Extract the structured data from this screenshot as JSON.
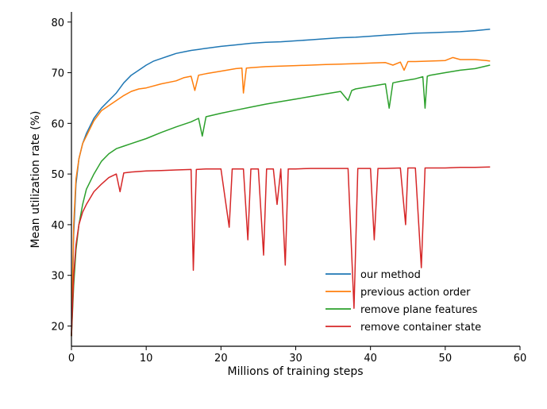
{
  "chart_data": {
    "type": "line",
    "title": "",
    "xlabel": "Millions of training steps",
    "ylabel": "Mean utilization rate (%)",
    "xlim": [
      0,
      60
    ],
    "ylim": [
      16,
      82
    ],
    "xticks": [
      0,
      10,
      20,
      30,
      40,
      50,
      60
    ],
    "yticks": [
      20,
      30,
      40,
      50,
      60,
      70,
      80
    ],
    "grid": false,
    "legend_position": "lower-right",
    "series": [
      {
        "name": "our method",
        "color": "#1f77b4",
        "x": [
          0,
          0.3,
          0.6,
          1,
          1.5,
          2,
          3,
          4,
          5,
          6,
          7,
          8,
          9,
          10,
          11,
          12,
          13,
          14,
          15,
          16,
          17,
          18,
          20,
          22,
          24,
          26,
          28,
          30,
          32,
          34,
          36,
          38,
          40,
          42,
          44,
          46,
          48,
          50,
          52,
          54,
          56
        ],
        "y": [
          18,
          38,
          48,
          53,
          56,
          58,
          61,
          63,
          64.5,
          66,
          68,
          69.5,
          70.5,
          71.5,
          72.3,
          72.8,
          73.3,
          73.8,
          74.1,
          74.4,
          74.6,
          74.8,
          75.2,
          75.5,
          75.8,
          76,
          76.1,
          76.3,
          76.5,
          76.7,
          76.9,
          77,
          77.2,
          77.4,
          77.6,
          77.8,
          77.9,
          78,
          78.1,
          78.3,
          78.6
        ]
      },
      {
        "name": "previous action order",
        "color": "#ff7f0e",
        "x": [
          0,
          0.3,
          0.6,
          1,
          1.5,
          2,
          3,
          4,
          5,
          6,
          7,
          8,
          9,
          10,
          12,
          14,
          15,
          16,
          16.5,
          17,
          18,
          20,
          22,
          22.8,
          23,
          23.4,
          24,
          26,
          28,
          30,
          32,
          34,
          36,
          38,
          40,
          42,
          43,
          44,
          44.5,
          45,
          46,
          48,
          50,
          51,
          52,
          54,
          55.5,
          56
        ],
        "y": [
          18,
          40,
          49,
          53,
          56,
          57.5,
          60.5,
          62.5,
          63.5,
          64.5,
          65.5,
          66.3,
          66.8,
          67,
          67.8,
          68.4,
          69,
          69.3,
          66.5,
          69.5,
          69.8,
          70.3,
          70.8,
          70.9,
          66,
          70.9,
          71,
          71.2,
          71.3,
          71.4,
          71.5,
          71.6,
          71.7,
          71.8,
          71.9,
          72,
          71.5,
          72.1,
          70.5,
          72.2,
          72.2,
          72.3,
          72.4,
          73,
          72.6,
          72.6,
          72.4,
          72.3
        ]
      },
      {
        "name": "remove plane features",
        "color": "#2ca02c",
        "x": [
          0,
          0.3,
          0.6,
          1,
          1.5,
          2,
          3,
          4,
          5,
          6,
          7,
          8,
          10,
          12,
          14,
          16,
          17,
          17.5,
          18,
          20,
          22,
          24,
          26,
          28,
          30,
          32,
          34,
          36,
          37,
          37.5,
          38,
          40,
          42,
          42.5,
          43,
          44,
          46,
          47,
          47.3,
          47.6,
          48,
          50,
          52,
          54,
          56
        ],
        "y": [
          18,
          28,
          35,
          40,
          44,
          47,
          50,
          52.5,
          54,
          55,
          55.5,
          56,
          57,
          58.2,
          59.3,
          60.3,
          61,
          57.5,
          61.3,
          62,
          62.6,
          63.2,
          63.8,
          64.3,
          64.8,
          65.3,
          65.8,
          66.3,
          64.5,
          66.5,
          66.8,
          67.3,
          67.8,
          63,
          68,
          68.3,
          68.8,
          69.2,
          63,
          69.3,
          69.5,
          70,
          70.5,
          70.8,
          71.5
        ]
      },
      {
        "name": "remove container state",
        "color": "#d62728",
        "x": [
          0,
          0.3,
          0.6,
          1,
          1.5,
          2,
          3,
          4,
          5,
          6,
          6.5,
          7,
          8,
          10,
          12,
          14,
          16,
          16.3,
          16.7,
          18,
          20,
          21.1,
          21.5,
          23,
          23.6,
          24,
          25,
          25.7,
          26.1,
          27,
          27.5,
          28,
          28.6,
          29,
          30,
          32,
          34,
          36,
          37,
          37.8,
          38.3,
          39,
          40,
          40.5,
          41,
          42,
          44,
          44.7,
          45,
          46,
          46.8,
          47.3,
          48,
          50,
          52,
          54,
          56
        ],
        "y": [
          18,
          30,
          36,
          40,
          42.5,
          44,
          46.5,
          48,
          49.3,
          50,
          46.5,
          50.2,
          50.4,
          50.6,
          50.7,
          50.8,
          50.9,
          31,
          50.9,
          51,
          51,
          39.5,
          51,
          51,
          37,
          51,
          51,
          34,
          51,
          51,
          44,
          51,
          32,
          51,
          51,
          51.1,
          51.1,
          51.1,
          51.1,
          23.5,
          51.1,
          51.1,
          51.1,
          37,
          51.1,
          51.1,
          51.2,
          40,
          51.2,
          51.2,
          31.5,
          51.2,
          51.2,
          51.2,
          51.3,
          51.3,
          51.4
        ]
      }
    ]
  }
}
